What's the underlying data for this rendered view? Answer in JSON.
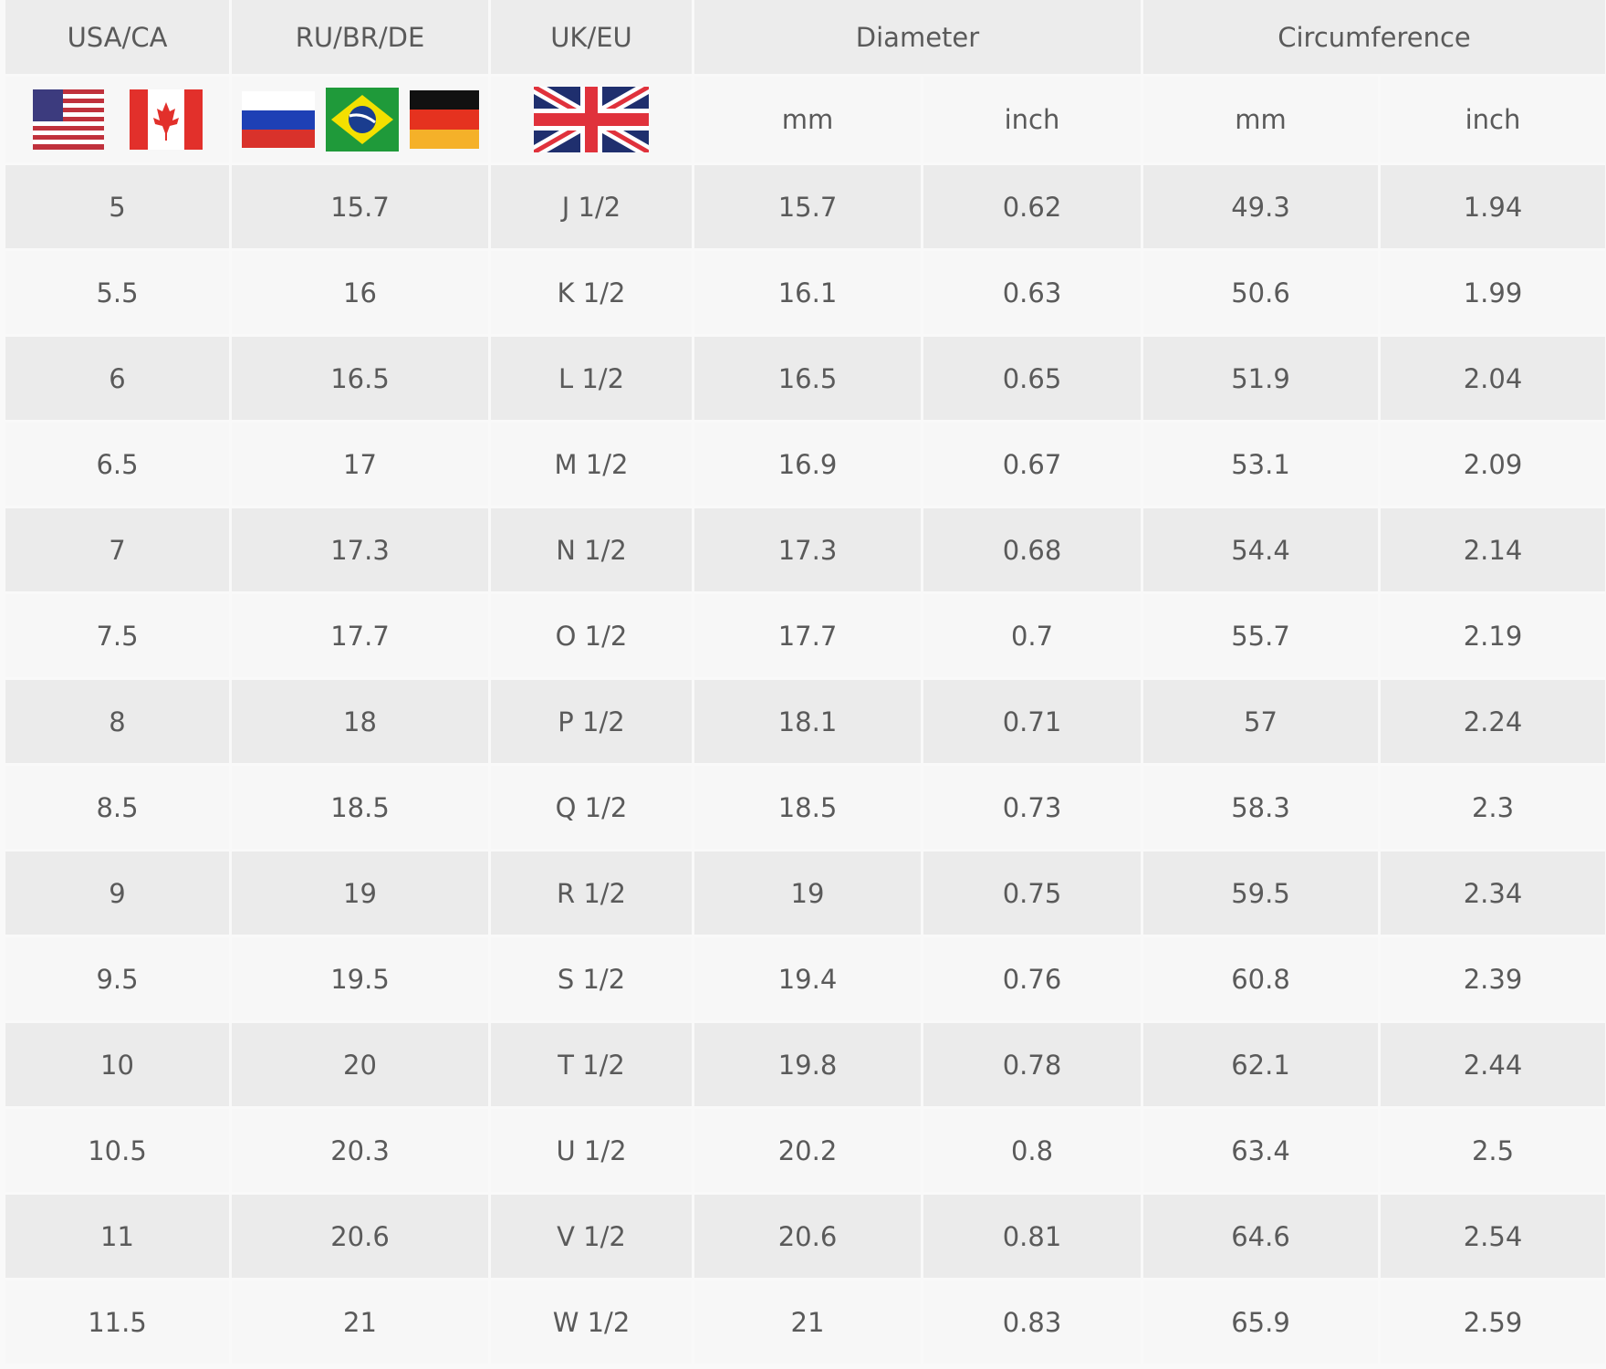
{
  "headers": {
    "usa_ca": "USA/CA",
    "ru_br_de": "RU/BR/DE",
    "uk_eu": "UK/EU",
    "diameter": "Diameter",
    "circumference": "Circumference"
  },
  "subheaders": {
    "diameter_mm": "mm",
    "diameter_inch": "inch",
    "circumference_mm": "mm",
    "circumference_inch": "inch"
  },
  "flags": {
    "usa_ca": [
      "us-flag-icon",
      "canada-flag-icon"
    ],
    "ru_br_de": [
      "russia-flag-icon",
      "brazil-flag-icon",
      "germany-flag-icon"
    ],
    "uk_eu": [
      "uk-flag-icon"
    ]
  },
  "rows": [
    [
      "5",
      "15.7",
      "J 1/2",
      "15.7",
      "0.62",
      "49.3",
      "1.94"
    ],
    [
      "5.5",
      "16",
      "K  1/2",
      "16.1",
      "0.63",
      "50.6",
      "1.99"
    ],
    [
      "6",
      "16.5",
      "L 1/2",
      "16.5",
      "0.65",
      "51.9",
      "2.04"
    ],
    [
      "6.5",
      "17",
      "M 1/2",
      "16.9",
      "0.67",
      "53.1",
      "2.09"
    ],
    [
      "7",
      "17.3",
      "N 1/2",
      "17.3",
      "0.68",
      "54.4",
      "2.14"
    ],
    [
      "7.5",
      "17.7",
      "O 1/2",
      "17.7",
      "0.7",
      "55.7",
      "2.19"
    ],
    [
      "8",
      "18",
      "P 1/2",
      "18.1",
      "0.71",
      "57",
      "2.24"
    ],
    [
      "8.5",
      "18.5",
      "Q 1/2",
      "18.5",
      "0.73",
      "58.3",
      "2.3"
    ],
    [
      "9",
      "19",
      "R 1/2",
      "19",
      "0.75",
      "59.5",
      "2.34"
    ],
    [
      "9.5",
      "19.5",
      "S 1/2",
      "19.4",
      "0.76",
      "60.8",
      "2.39"
    ],
    [
      "10",
      "20",
      "T 1/2",
      "19.8",
      "0.78",
      "62.1",
      "2.44"
    ],
    [
      "10.5",
      "20.3",
      "U 1/2",
      "20.2",
      "0.8",
      "63.4",
      "2.5"
    ],
    [
      "11",
      "20.6",
      "V 1/2",
      "20.6",
      "0.81",
      "64.6",
      "2.54"
    ],
    [
      "11.5",
      "21",
      "W 1/2",
      "21",
      "0.83",
      "65.9",
      "2.59"
    ]
  ]
}
